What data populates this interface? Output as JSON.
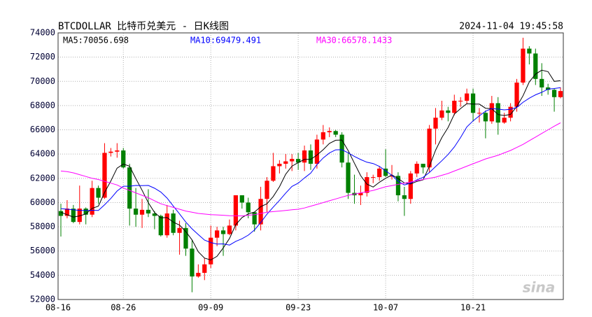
{
  "chart_data": {
    "type": "candlestick",
    "title": "BTCDOLLAR  比特币兑美元 - 日K线图",
    "timestamp": "2024-11-04 19:45:58",
    "watermark": "sina",
    "up_color": "#ff0000",
    "down_color": "#008000",
    "grid": true,
    "ylim": [
      52000,
      74000
    ],
    "yticks": [
      52000,
      54000,
      56000,
      58000,
      60000,
      62000,
      64000,
      66000,
      68000,
      70000,
      72000,
      74000
    ],
    "categories": [
      "08-16",
      null,
      null,
      null,
      null,
      null,
      null,
      null,
      null,
      null,
      "08-26",
      null,
      null,
      null,
      null,
      null,
      null,
      null,
      null,
      null,
      null,
      null,
      null,
      null,
      "09-09",
      null,
      null,
      null,
      null,
      null,
      null,
      null,
      null,
      null,
      null,
      null,
      null,
      null,
      "09-23",
      null,
      null,
      null,
      null,
      null,
      null,
      null,
      null,
      null,
      null,
      null,
      null,
      null,
      "10-07",
      null,
      null,
      null,
      null,
      null,
      null,
      null,
      null,
      null,
      null,
      null,
      null,
      null,
      "10-21",
      null,
      null,
      null,
      null,
      null,
      null,
      null,
      null,
      null,
      null,
      null,
      null,
      null,
      null
    ],
    "open": [
      59300,
      58900,
      59500,
      58400,
      59500,
      59000,
      61200,
      60400,
      64100,
      64200,
      64300,
      62900,
      59500,
      59000,
      59400,
      59100,
      58900,
      57300,
      59100,
      57500,
      57900,
      56200,
      53900,
      54200,
      54900,
      57100,
      57700,
      57400,
      58100,
      60600,
      60000,
      59200,
      58200,
      60300,
      61800,
      63000,
      63200,
      63400,
      63600,
      63300,
      64300,
      63200,
      65200,
      65800,
      65900,
      65600,
      63300,
      60800,
      60600,
      60800,
      62100,
      62100,
      62800,
      62200,
      62200,
      60600,
      60300,
      62400,
      63200,
      62900,
      66100,
      67000,
      67600,
      67400,
      68400,
      68400,
      69000,
      67400,
      67400,
      66700,
      68200,
      66600,
      67000,
      67900,
      69900,
      72700,
      72300,
      70200,
      69500,
      69300,
      68700
    ],
    "high": [
      59900,
      60200,
      59800,
      61400,
      59600,
      61800,
      61400,
      64900,
      64500,
      64900,
      64500,
      63200,
      61200,
      60300,
      61100,
      59300,
      59000,
      59800,
      59400,
      58500,
      58300,
      56900,
      54900,
      55400,
      58100,
      58000,
      58000,
      58600,
      60600,
      60600,
      60400,
      59200,
      61300,
      62100,
      64100,
      63500,
      64000,
      64000,
      64100,
      64700,
      64800,
      65600,
      66400,
      66200,
      66000,
      65800,
      64100,
      62300,
      61400,
      62500,
      62300,
      63000,
      64400,
      63100,
      62500,
      61300,
      62600,
      63400,
      63200,
      66400,
      67800,
      68400,
      67900,
      68900,
      68700,
      69400,
      69400,
      67800,
      67600,
      68800,
      68700,
      67400,
      68200,
      70200,
      73600,
      72900,
      72700,
      71500,
      69800,
      69400,
      69500
    ],
    "low": [
      57200,
      58700,
      58300,
      58200,
      58200,
      58800,
      59900,
      60300,
      63800,
      63700,
      62800,
      58100,
      58000,
      57900,
      58800,
      57800,
      57200,
      57100,
      57300,
      55700,
      55600,
      52600,
      53800,
      53600,
      54600,
      56400,
      55600,
      57300,
      57700,
      59500,
      58700,
      57600,
      57700,
      59200,
      61700,
      62400,
      62800,
      62600,
      62700,
      62600,
      62700,
      62800,
      64800,
      65400,
      65400,
      62900,
      60300,
      59900,
      59800,
      60500,
      61600,
      61800,
      62100,
      61900,
      60100,
      58900,
      59900,
      62100,
      62400,
      62500,
      64800,
      66800,
      66700,
      67200,
      67900,
      68100,
      66700,
      66600,
      65300,
      66500,
      65600,
      66500,
      66700,
      67500,
      69700,
      71400,
      69700,
      68800,
      68900,
      67500,
      68600
    ],
    "close": [
      58900,
      59500,
      58400,
      59500,
      59000,
      61200,
      60400,
      64100,
      64200,
      64300,
      62900,
      59500,
      59000,
      59400,
      59100,
      58900,
      57300,
      59100,
      57500,
      57900,
      56200,
      53900,
      54200,
      54900,
      57100,
      57700,
      57400,
      58100,
      60600,
      60000,
      59200,
      58200,
      60300,
      61800,
      63000,
      63200,
      63400,
      63600,
      63300,
      64300,
      63200,
      65200,
      65800,
      65900,
      65600,
      63300,
      60800,
      60600,
      60800,
      62100,
      62100,
      62800,
      62200,
      62200,
      60600,
      60300,
      62400,
      63200,
      62900,
      66100,
      67000,
      67600,
      67400,
      68400,
      68400,
      69000,
      67400,
      67400,
      66700,
      68200,
      66600,
      67000,
      67900,
      69900,
      72700,
      72300,
      70200,
      69500,
      69300,
      68700,
      69200
    ],
    "series": [
      {
        "name": "MA5:70056.698",
        "color": "#000000",
        "values": [
          59200,
          59000,
          58800,
          58900,
          59060,
          59520,
          59700,
          60840,
          61780,
          62840,
          63180,
          63000,
          61980,
          61020,
          59980,
          59180,
          58740,
          58760,
          58380,
          58140,
          57600,
          56920,
          55940,
          55420,
          55260,
          55560,
          56260,
          57040,
          58180,
          58760,
          59060,
          59220,
          59660,
          59900,
          60500,
          61300,
          62340,
          63000,
          63300,
          63560,
          63560,
          63920,
          64360,
          64880,
          65140,
          65160,
          64280,
          63240,
          62220,
          61520,
          61280,
          61680,
          62000,
          62280,
          61980,
          61620,
          61540,
          61740,
          61880,
          62980,
          64320,
          65360,
          66200,
          67300,
          67760,
          68160,
          68120,
          68120,
          67780,
          67740,
          67260,
          67180,
          67280,
          67920,
          68820,
          69960,
          70600,
          70920,
          70800,
          70000,
          70056.698
        ]
      },
      {
        "name": "MA10:69479.491",
        "color": "#0000ff",
        "values": [
          59500,
          59450,
          59400,
          59350,
          59350,
          59360,
          59350,
          59820,
          60340,
          60950,
          61350,
          61350,
          61410,
          61400,
          61410,
          61180,
          60870,
          60370,
          59700,
          59060,
          58390,
          57830,
          57350,
          56900,
          56700,
          56580,
          56590,
          56490,
          56800,
          57010,
          57310,
          57740,
          58350,
          59040,
          59630,
          60180,
          60780,
          61330,
          61600,
          62030,
          62430,
          63130,
          63680,
          64090,
          64350,
          64360,
          64100,
          63800,
          63550,
          63330,
          63220,
          62980,
          62620,
          62250,
          61750,
          61450,
          61610,
          61870,
          62080,
          62480,
          62970,
          63450,
          63970,
          64590,
          65370,
          66240,
          66740,
          67160,
          67540,
          67750,
          67710,
          67650,
          67700,
          67850,
          68280,
          68610,
          68890,
          69100,
          69360,
          69410,
          69479.491
        ]
      },
      {
        "name": "MA30:66578.1433",
        "color": "#ff00ff",
        "values": [
          62600,
          62550,
          62450,
          62300,
          62150,
          62000,
          61900,
          61750,
          61600,
          61450,
          61200,
          61000,
          60800,
          60600,
          60400,
          60150,
          59900,
          59750,
          59600,
          59450,
          59300,
          59200,
          59100,
          59050,
          59000,
          58980,
          58950,
          58920,
          58900,
          58900,
          58950,
          59000,
          59100,
          59200,
          59250,
          59300,
          59350,
          59400,
          59450,
          59550,
          59700,
          59850,
          60000,
          60150,
          60300,
          60450,
          60600,
          60700,
          60800,
          60900,
          61000,
          61150,
          61300,
          61400,
          61500,
          61600,
          61700,
          61800,
          61900,
          62000,
          62100,
          62250,
          62400,
          62600,
          62800,
          63000,
          63200,
          63400,
          63600,
          63750,
          63900,
          64100,
          64300,
          64550,
          64800,
          65100,
          65400,
          65700,
          66000,
          66300,
          66578.1433
        ]
      }
    ]
  }
}
